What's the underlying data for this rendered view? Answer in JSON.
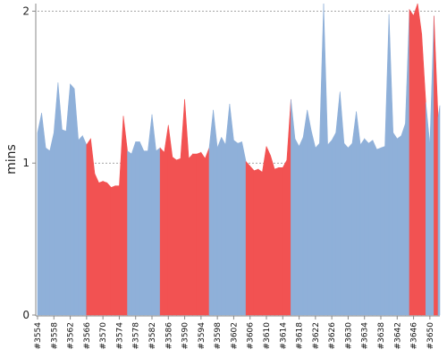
{
  "chart_data": {
    "type": "area",
    "ylabel": "mins",
    "xlabel": "",
    "title": "",
    "ylim": [
      0,
      2.05
    ],
    "yticks": [
      0,
      1,
      2
    ],
    "ytick_labels": [
      "0",
      "1",
      "2"
    ],
    "grid": true,
    "x_labels": [
      "#3554",
      "#3558",
      "#3562",
      "#3566",
      "#3570",
      "#3574",
      "#3578",
      "#3582",
      "#3586",
      "#3590",
      "#3594",
      "#3598",
      "#3602",
      "#3606",
      "#3610",
      "#3614",
      "#3618",
      "#3622",
      "#3626",
      "#3630",
      "#3634",
      "#3638",
      "#3642",
      "#3646",
      "#3650"
    ],
    "x_start": 3554,
    "x_end": 3652,
    "colors": {
      "success": "#8fb0d9",
      "failure": "#f25252"
    },
    "builds": [
      {
        "n": 3554,
        "v": 1.2,
        "s": "success"
      },
      {
        "n": 3555,
        "v": 1.33,
        "s": "success"
      },
      {
        "n": 3556,
        "v": 1.1,
        "s": "success"
      },
      {
        "n": 3557,
        "v": 1.08,
        "s": "success"
      },
      {
        "n": 3558,
        "v": 1.2,
        "s": "success"
      },
      {
        "n": 3559,
        "v": 1.53,
        "s": "success"
      },
      {
        "n": 3560,
        "v": 1.22,
        "s": "success"
      },
      {
        "n": 3561,
        "v": 1.21,
        "s": "success"
      },
      {
        "n": 3562,
        "v": 1.52,
        "s": "success"
      },
      {
        "n": 3563,
        "v": 1.49,
        "s": "success"
      },
      {
        "n": 3564,
        "v": 1.15,
        "s": "success"
      },
      {
        "n": 3565,
        "v": 1.18,
        "s": "success"
      },
      {
        "n": 3566,
        "v": 1.12,
        "s": "failure"
      },
      {
        "n": 3567,
        "v": 1.16,
        "s": "failure"
      },
      {
        "n": 3568,
        "v": 0.93,
        "s": "failure"
      },
      {
        "n": 3569,
        "v": 0.87,
        "s": "failure"
      },
      {
        "n": 3570,
        "v": 0.88,
        "s": "failure"
      },
      {
        "n": 3571,
        "v": 0.87,
        "s": "failure"
      },
      {
        "n": 3572,
        "v": 0.84,
        "s": "failure"
      },
      {
        "n": 3573,
        "v": 0.85,
        "s": "failure"
      },
      {
        "n": 3574,
        "v": 0.85,
        "s": "failure"
      },
      {
        "n": 3575,
        "v": 1.31,
        "s": "failure"
      },
      {
        "n": 3576,
        "v": 1.08,
        "s": "success"
      },
      {
        "n": 3577,
        "v": 1.06,
        "s": "success"
      },
      {
        "n": 3578,
        "v": 1.14,
        "s": "success"
      },
      {
        "n": 3579,
        "v": 1.14,
        "s": "success"
      },
      {
        "n": 3580,
        "v": 1.08,
        "s": "success"
      },
      {
        "n": 3581,
        "v": 1.08,
        "s": "success"
      },
      {
        "n": 3582,
        "v": 1.32,
        "s": "success"
      },
      {
        "n": 3583,
        "v": 1.08,
        "s": "success"
      },
      {
        "n": 3584,
        "v": 1.1,
        "s": "failure"
      },
      {
        "n": 3585,
        "v": 1.07,
        "s": "failure"
      },
      {
        "n": 3586,
        "v": 1.25,
        "s": "failure"
      },
      {
        "n": 3587,
        "v": 1.04,
        "s": "failure"
      },
      {
        "n": 3588,
        "v": 1.02,
        "s": "failure"
      },
      {
        "n": 3589,
        "v": 1.03,
        "s": "failure"
      },
      {
        "n": 3590,
        "v": 1.42,
        "s": "failure"
      },
      {
        "n": 3591,
        "v": 1.03,
        "s": "failure"
      },
      {
        "n": 3592,
        "v": 1.06,
        "s": "failure"
      },
      {
        "n": 3593,
        "v": 1.06,
        "s": "failure"
      },
      {
        "n": 3594,
        "v": 1.07,
        "s": "failure"
      },
      {
        "n": 3595,
        "v": 1.03,
        "s": "failure"
      },
      {
        "n": 3596,
        "v": 1.1,
        "s": "success"
      },
      {
        "n": 3597,
        "v": 1.35,
        "s": "success"
      },
      {
        "n": 3598,
        "v": 1.1,
        "s": "success"
      },
      {
        "n": 3599,
        "v": 1.17,
        "s": "success"
      },
      {
        "n": 3600,
        "v": 1.12,
        "s": "success"
      },
      {
        "n": 3601,
        "v": 1.39,
        "s": "success"
      },
      {
        "n": 3602,
        "v": 1.15,
        "s": "success"
      },
      {
        "n": 3603,
        "v": 1.13,
        "s": "success"
      },
      {
        "n": 3604,
        "v": 1.14,
        "s": "success"
      },
      {
        "n": 3605,
        "v": 1.01,
        "s": "failure"
      },
      {
        "n": 3606,
        "v": 0.98,
        "s": "failure"
      },
      {
        "n": 3607,
        "v": 0.95,
        "s": "failure"
      },
      {
        "n": 3608,
        "v": 0.96,
        "s": "failure"
      },
      {
        "n": 3609,
        "v": 0.94,
        "s": "failure"
      },
      {
        "n": 3610,
        "v": 1.11,
        "s": "failure"
      },
      {
        "n": 3611,
        "v": 1.05,
        "s": "failure"
      },
      {
        "n": 3612,
        "v": 0.96,
        "s": "failure"
      },
      {
        "n": 3613,
        "v": 0.97,
        "s": "failure"
      },
      {
        "n": 3614,
        "v": 0.97,
        "s": "failure"
      },
      {
        "n": 3615,
        "v": 1.02,
        "s": "failure"
      },
      {
        "n": 3616,
        "v": 1.42,
        "s": "success"
      },
      {
        "n": 3617,
        "v": 1.16,
        "s": "success"
      },
      {
        "n": 3618,
        "v": 1.11,
        "s": "success"
      },
      {
        "n": 3619,
        "v": 1.17,
        "s": "success"
      },
      {
        "n": 3620,
        "v": 1.35,
        "s": "success"
      },
      {
        "n": 3621,
        "v": 1.21,
        "s": "success"
      },
      {
        "n": 3622,
        "v": 1.1,
        "s": "success"
      },
      {
        "n": 3623,
        "v": 1.13,
        "s": "success"
      },
      {
        "n": 3624,
        "v": 2.05,
        "s": "success"
      },
      {
        "n": 3625,
        "v": 1.12,
        "s": "success"
      },
      {
        "n": 3626,
        "v": 1.15,
        "s": "success"
      },
      {
        "n": 3627,
        "v": 1.2,
        "s": "success"
      },
      {
        "n": 3628,
        "v": 1.47,
        "s": "success"
      },
      {
        "n": 3629,
        "v": 1.13,
        "s": "success"
      },
      {
        "n": 3630,
        "v": 1.1,
        "s": "success"
      },
      {
        "n": 3631,
        "v": 1.13,
        "s": "success"
      },
      {
        "n": 3632,
        "v": 1.34,
        "s": "success"
      },
      {
        "n": 3633,
        "v": 1.12,
        "s": "success"
      },
      {
        "n": 3634,
        "v": 1.16,
        "s": "success"
      },
      {
        "n": 3635,
        "v": 1.13,
        "s": "success"
      },
      {
        "n": 3636,
        "v": 1.15,
        "s": "success"
      },
      {
        "n": 3637,
        "v": 1.09,
        "s": "success"
      },
      {
        "n": 3638,
        "v": 1.1,
        "s": "success"
      },
      {
        "n": 3639,
        "v": 1.11,
        "s": "success"
      },
      {
        "n": 3640,
        "v": 1.98,
        "s": "success"
      },
      {
        "n": 3641,
        "v": 1.2,
        "s": "success"
      },
      {
        "n": 3642,
        "v": 1.16,
        "s": "success"
      },
      {
        "n": 3643,
        "v": 1.18,
        "s": "success"
      },
      {
        "n": 3644,
        "v": 1.26,
        "s": "success"
      },
      {
        "n": 3645,
        "v": 2.01,
        "s": "failure"
      },
      {
        "n": 3646,
        "v": 1.97,
        "s": "failure"
      },
      {
        "n": 3647,
        "v": 2.05,
        "s": "failure"
      },
      {
        "n": 3648,
        "v": 1.85,
        "s": "failure"
      },
      {
        "n": 3649,
        "v": 1.4,
        "s": "success"
      },
      {
        "n": 3650,
        "v": 1.12,
        "s": "success"
      },
      {
        "n": 3651,
        "v": 1.97,
        "s": "failure"
      },
      {
        "n": 3652,
        "v": 1.3,
        "s": "success"
      },
      {
        "n": 3653,
        "v": 1.38,
        "s": "success"
      }
    ]
  }
}
